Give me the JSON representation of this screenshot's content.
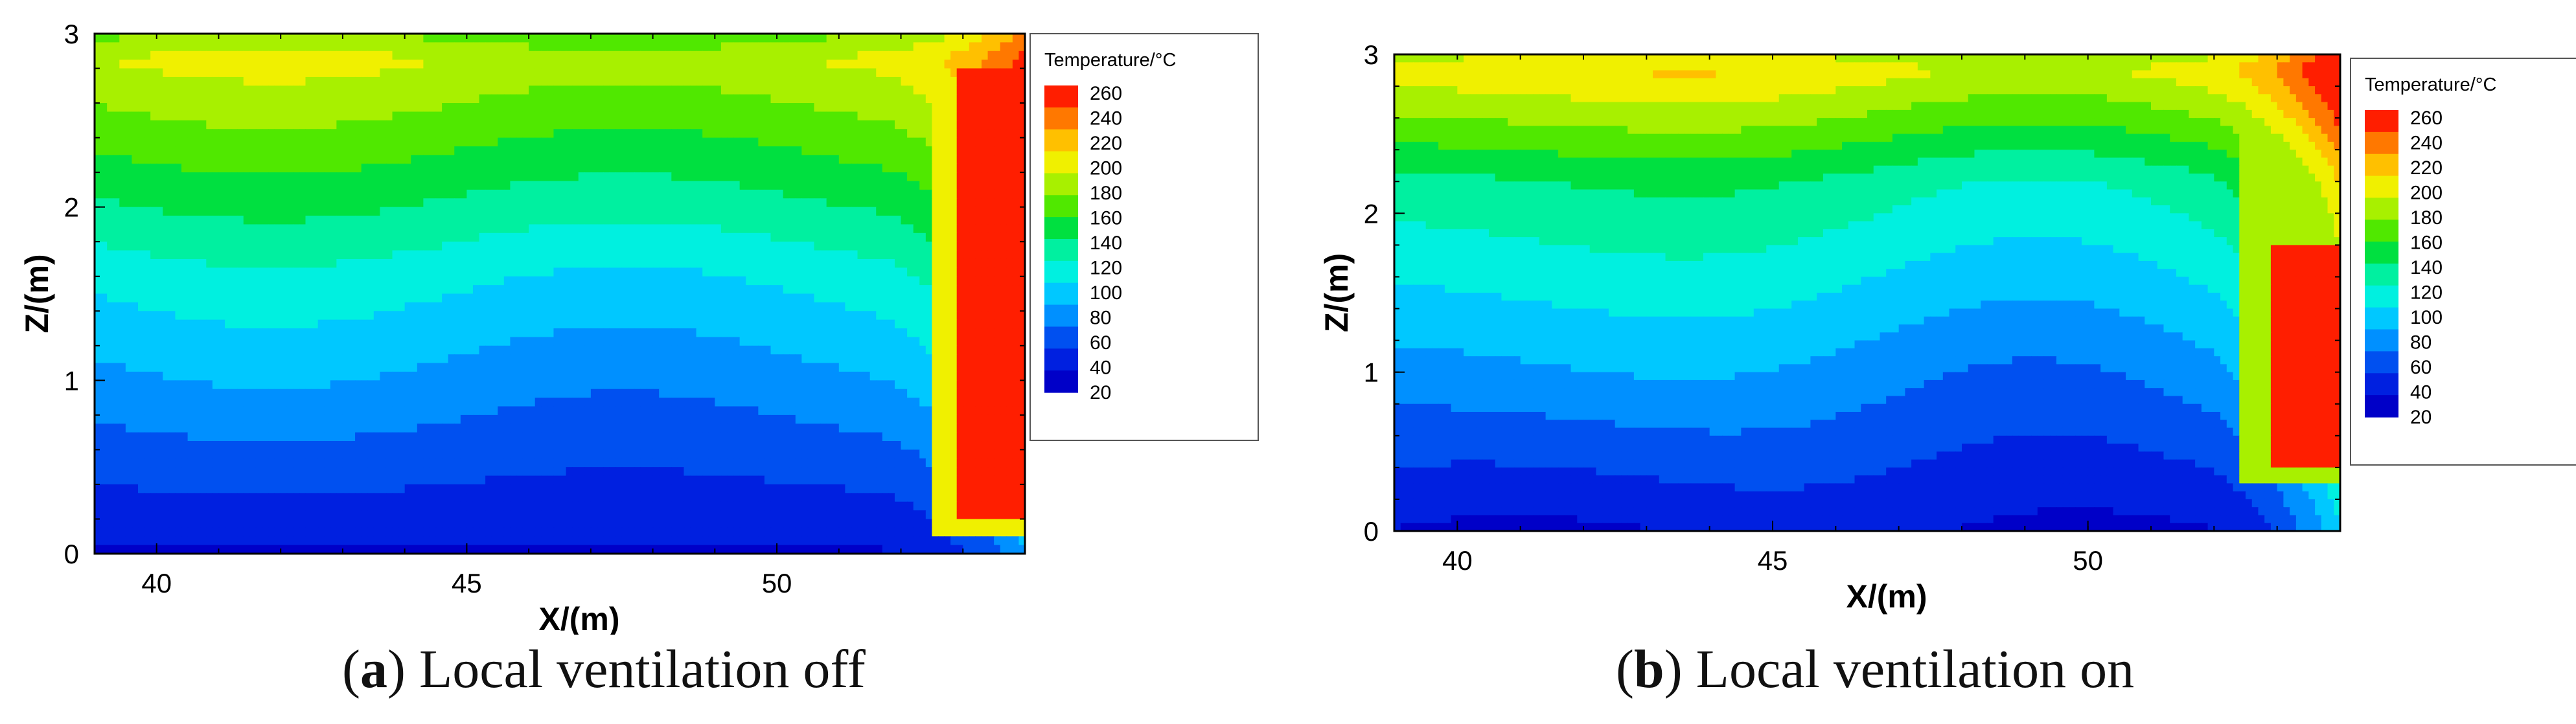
{
  "chart_data": [
    {
      "type": "contour",
      "id": "a",
      "xlabel": "X/(m)",
      "ylabel": "Z/(m)",
      "xlim": [
        39,
        54
      ],
      "ylim": [
        0,
        3
      ],
      "xticks": [
        40,
        45,
        50
      ],
      "yticks": [
        0,
        1,
        2,
        3
      ],
      "legend": {
        "title": "Temperature/°C",
        "levels": [
          260,
          240,
          220,
          200,
          180,
          160,
          140,
          120,
          100,
          80,
          60,
          40,
          20
        ]
      },
      "caption": {
        "label": "a",
        "text": ") Local ventilation off"
      },
      "hotspot": {
        "xmin": 52.9,
        "xmax": 54.0,
        "zmin": 0.2,
        "zmax": 2.8,
        "peak": 260
      }
    },
    {
      "type": "contour",
      "id": "b",
      "xlabel": "X/(m)",
      "ylabel": "Z/(m)",
      "xlim": [
        39,
        54
      ],
      "ylim": [
        0,
        3
      ],
      "xticks": [
        40,
        45,
        50
      ],
      "yticks": [
        0,
        1,
        2,
        3
      ],
      "legend": {
        "title": "Temperature/°C",
        "levels": [
          260,
          240,
          220,
          200,
          180,
          160,
          140,
          120,
          100,
          80,
          60,
          40,
          20
        ]
      },
      "caption": {
        "label": "b",
        "text": ") Local ventilation on"
      },
      "hotspot": {
        "xmin": 52.9,
        "xmax": 54.0,
        "zmin": 0.4,
        "zmax": 1.8,
        "peak": 260
      }
    }
  ],
  "colors": {
    "scale": [
      "#0000c8",
      "#0020e0",
      "#0050f0",
      "#0090ff",
      "#00c8ff",
      "#00f0e0",
      "#00f0a0",
      "#00e040",
      "#50e800",
      "#a8f000",
      "#f0f000",
      "#ffc000",
      "#ff7800",
      "#ff1e00"
    ],
    "frame": "#000000",
    "legend_border": "#555555"
  }
}
